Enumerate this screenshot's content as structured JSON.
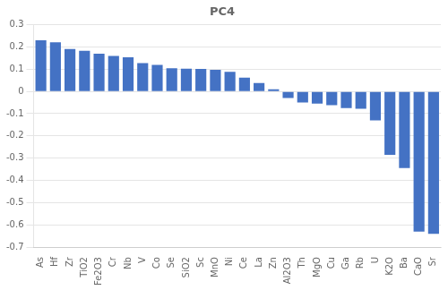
{
  "chart_data": {
    "type": "bar",
    "title": "PC4",
    "categories": [
      "As",
      "Hf",
      "Zr",
      "TiO2",
      "Fe2O3",
      "Cr",
      "Nb",
      "V",
      "Co",
      "Se",
      "SiO2",
      "Sc",
      "MnO",
      "Ni",
      "Ce",
      "La",
      "Zn",
      "Al2O3",
      "Th",
      "MgO",
      "Cu",
      "Ga",
      "Rb",
      "U",
      "K2O",
      "Ba",
      "CaO",
      "Sr"
    ],
    "values": [
      0.23,
      0.221,
      0.191,
      0.183,
      0.17,
      0.16,
      0.153,
      0.127,
      0.119,
      0.104,
      0.102,
      0.101,
      0.097,
      0.088,
      0.062,
      0.038,
      0.01,
      -0.03,
      -0.05,
      -0.055,
      -0.062,
      -0.075,
      -0.078,
      -0.13,
      -0.285,
      -0.345,
      -0.63,
      -0.64
    ],
    "color": "#4472C4",
    "ylim": [
      -0.7,
      0.3
    ],
    "yticks": [
      -0.7,
      -0.6,
      -0.5,
      -0.4,
      -0.3,
      -0.2,
      -0.1,
      0,
      0.1,
      0.2,
      0.3
    ],
    "grid": true
  }
}
